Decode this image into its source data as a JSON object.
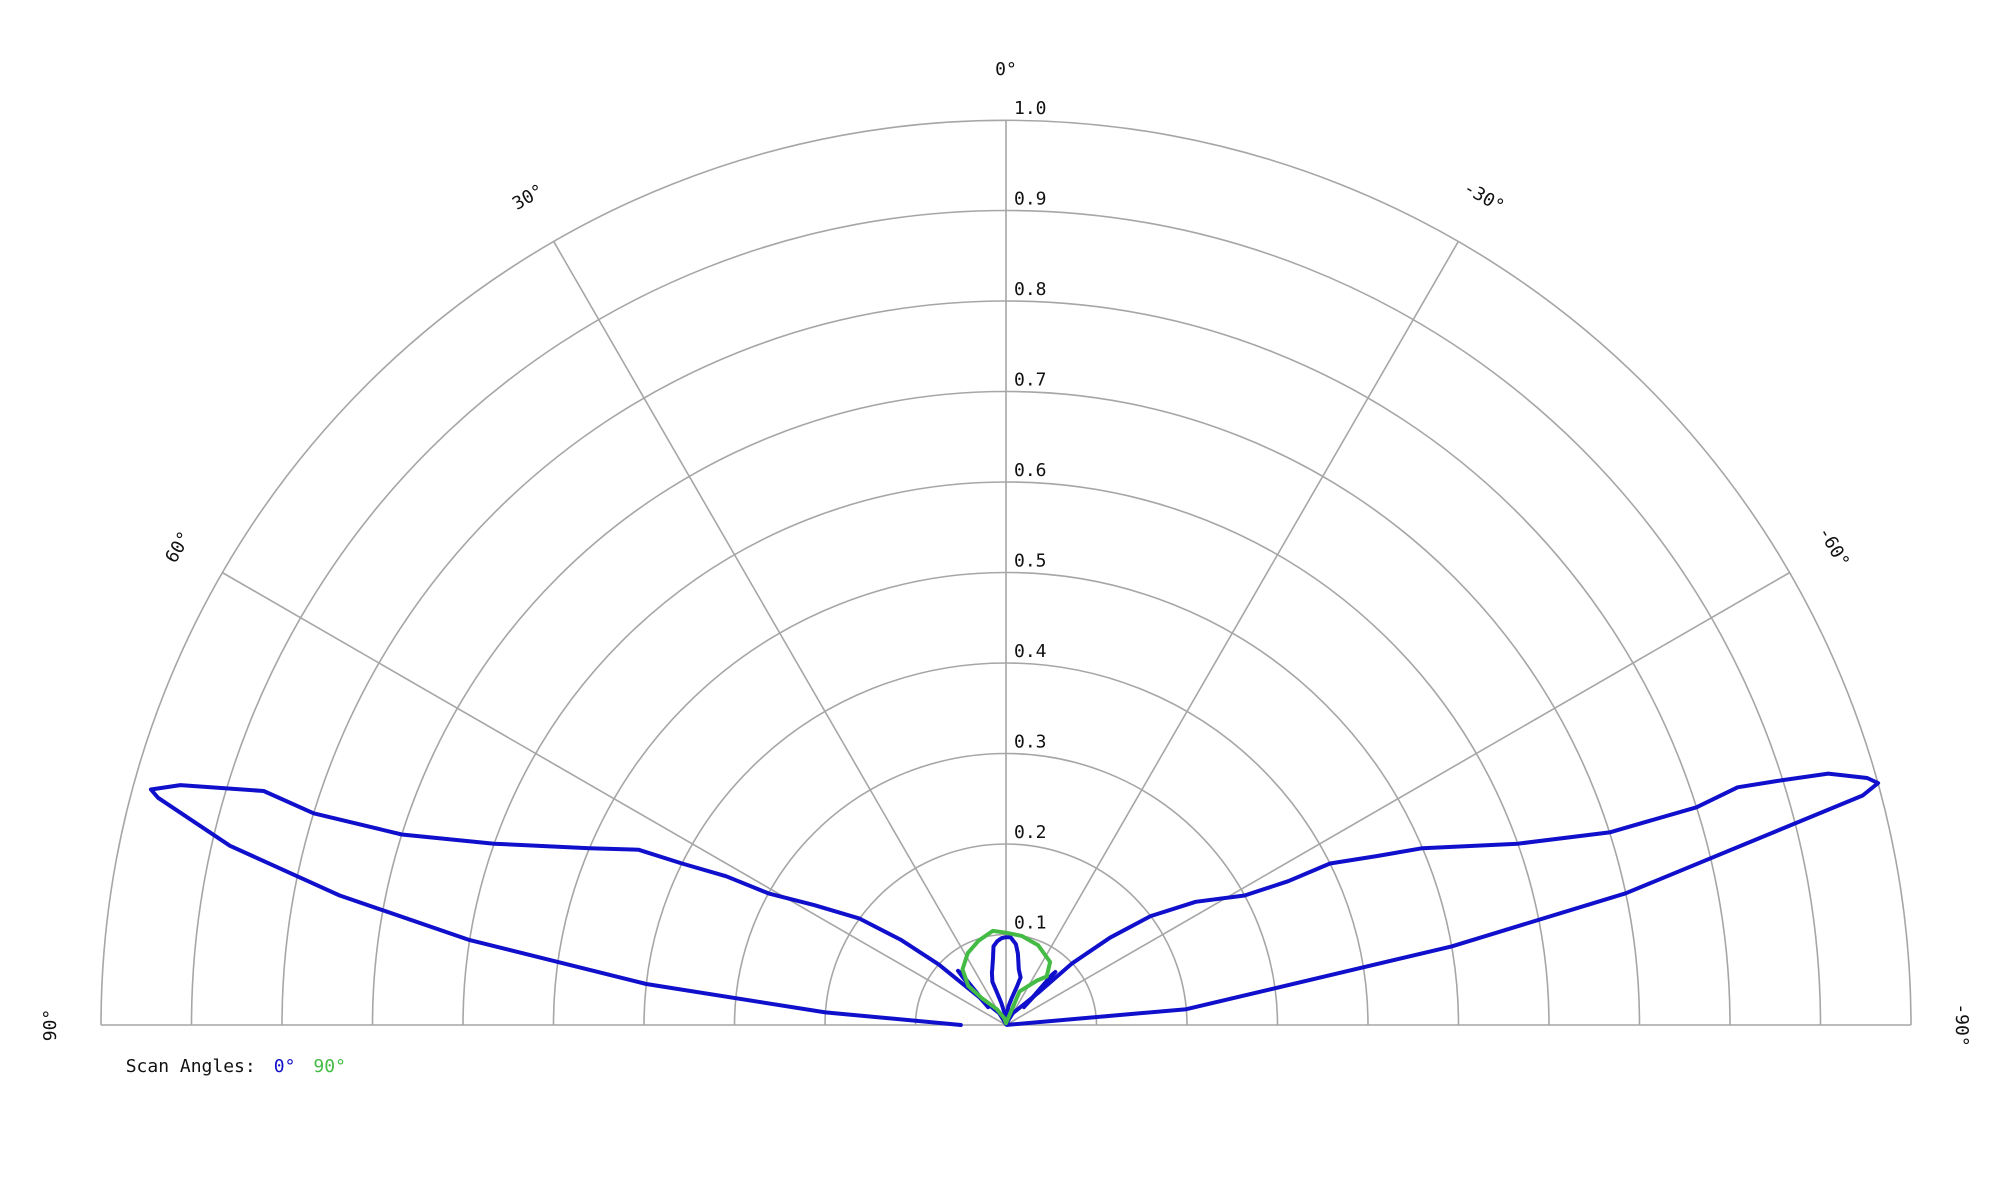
{
  "chart_data": {
    "type": "polar",
    "title": "",
    "angle_range": [
      -90,
      90
    ],
    "r_range": [
      0,
      1.0
    ],
    "grid": true,
    "angle_ticks": [
      {
        "value": 0,
        "label": "0°"
      },
      {
        "value": 30,
        "label": "30°"
      },
      {
        "value": -30,
        "label": "-30°"
      },
      {
        "value": 60,
        "label": "60°"
      },
      {
        "value": -60,
        "label": "-60°"
      },
      {
        "value": 90,
        "label": "90°"
      },
      {
        "value": -90,
        "label": "-90°"
      }
    ],
    "r_ticks": [
      {
        "value": 0.1,
        "label": "0.1"
      },
      {
        "value": 0.2,
        "label": "0.2"
      },
      {
        "value": 0.3,
        "label": "0.3"
      },
      {
        "value": 0.4,
        "label": "0.4"
      },
      {
        "value": 0.5,
        "label": "0.5"
      },
      {
        "value": 0.6,
        "label": "0.6"
      },
      {
        "value": 0.7,
        "label": "0.7"
      },
      {
        "value": 0.8,
        "label": "0.8"
      },
      {
        "value": 0.9,
        "label": "0.9"
      },
      {
        "value": 1.0,
        "label": "1.0"
      }
    ],
    "legend": {
      "title": "Scan Angles:",
      "position": "bottom-left"
    },
    "series": [
      {
        "name": "0°",
        "color": "#1010cc",
        "segments": [
          [
            [
              -86,
              0.001
            ],
            [
              -85,
              0.2
            ],
            [
              -80,
              0.5
            ],
            [
              -78,
              0.7
            ],
            [
              -75,
              0.98
            ],
            [
              -74.5,
              1.0
            ],
            [
              -74,
              0.99
            ],
            [
              -73,
              0.95
            ],
            [
              -72.5,
              0.9
            ],
            [
              -72,
              0.85
            ],
            [
              -72.5,
              0.8
            ],
            [
              -72.3,
              0.7
            ],
            [
              -70.5,
              0.6
            ],
            [
              -67,
              0.5
            ],
            [
              -65.5,
              0.45
            ],
            [
              -63.5,
              0.4
            ],
            [
              -63,
              0.35
            ],
            [
              -61.5,
              0.3
            ],
            [
              -57,
              0.25
            ],
            [
              -53,
              0.2
            ],
            [
              -50,
              0.15
            ],
            [
              -47,
              0.1
            ],
            [
              -45,
              0.05
            ],
            [
              -30,
              0.015
            ],
            [
              0,
              0.001
            ]
          ],
          [
            [
              0,
              0.001
            ],
            [
              30,
              0.015
            ],
            [
              45,
              0.05
            ],
            [
              48,
              0.1
            ],
            [
              51,
              0.15
            ],
            [
              54,
              0.2
            ],
            [
              58,
              0.25
            ],
            [
              61,
              0.3
            ],
            [
              62,
              0.35
            ],
            [
              63.5,
              0.4
            ],
            [
              64.5,
              0.45
            ],
            [
              67,
              0.5
            ],
            [
              70.5,
              0.6
            ],
            [
              72.5,
              0.7
            ],
            [
              73,
              0.8
            ],
            [
              72.5,
              0.86
            ],
            [
              73.8,
              0.95
            ],
            [
              74.6,
              0.98
            ],
            [
              75,
              0.97
            ],
            [
              77,
              0.88
            ],
            [
              79,
              0.75
            ],
            [
              81,
              0.6
            ],
            [
              83.5,
              0.4
            ],
            [
              86,
              0.2
            ],
            [
              89,
              0.06
            ],
            [
              90,
              0.05
            ]
          ],
          [
            [
              -45,
              0.028
            ],
            [
              -44,
              0.06
            ],
            [
              -43,
              0.08
            ],
            [
              -42.5,
              0.076
            ],
            [
              -44,
              0.04
            ],
            [
              -45,
              0.028
            ]
          ],
          [
            [
              45,
              0.028
            ],
            [
              43,
              0.06
            ],
            [
              41.5,
              0.08
            ],
            [
              41,
              0.076
            ],
            [
              42,
              0.05
            ],
            [
              45,
              0.028
            ]
          ],
          [
            [
              0,
              0.002
            ],
            [
              -7,
              0.02
            ],
            [
              -12,
              0.03
            ],
            [
              -16,
              0.045
            ],
            [
              -17,
              0.055
            ],
            [
              -13,
              0.063
            ],
            [
              -9.5,
              0.08
            ],
            [
              -7,
              0.09
            ],
            [
              -3,
              0.097
            ],
            [
              0,
              0.097
            ],
            [
              3,
              0.096
            ],
            [
              6,
              0.093
            ],
            [
              9,
              0.088
            ],
            [
              11,
              0.075
            ],
            [
              14,
              0.063
            ],
            [
              15,
              0.06
            ],
            [
              17.5,
              0.05
            ],
            [
              16,
              0.04
            ],
            [
              12,
              0.025
            ],
            [
              6,
              0.012
            ],
            [
              0,
              0.002
            ]
          ]
        ]
      },
      {
        "name": "90°",
        "color": "#44bb44",
        "segments": [
          [
            [
              0,
              0.002
            ],
            [
              -22,
              0.04
            ],
            [
              -35,
              0.06
            ],
            [
              -40,
              0.07
            ],
            [
              -35,
              0.085
            ],
            [
              -22,
              0.095
            ],
            [
              -10,
              0.1
            ],
            [
              0,
              0.102
            ],
            [
              8,
              0.105
            ],
            [
              18,
              0.098
            ],
            [
              28,
              0.09
            ],
            [
              38,
              0.078
            ],
            [
              44,
              0.06
            ],
            [
              42,
              0.04
            ],
            [
              30,
              0.02
            ],
            [
              15,
              0.008
            ],
            [
              0,
              0.002
            ]
          ]
        ]
      }
    ]
  }
}
